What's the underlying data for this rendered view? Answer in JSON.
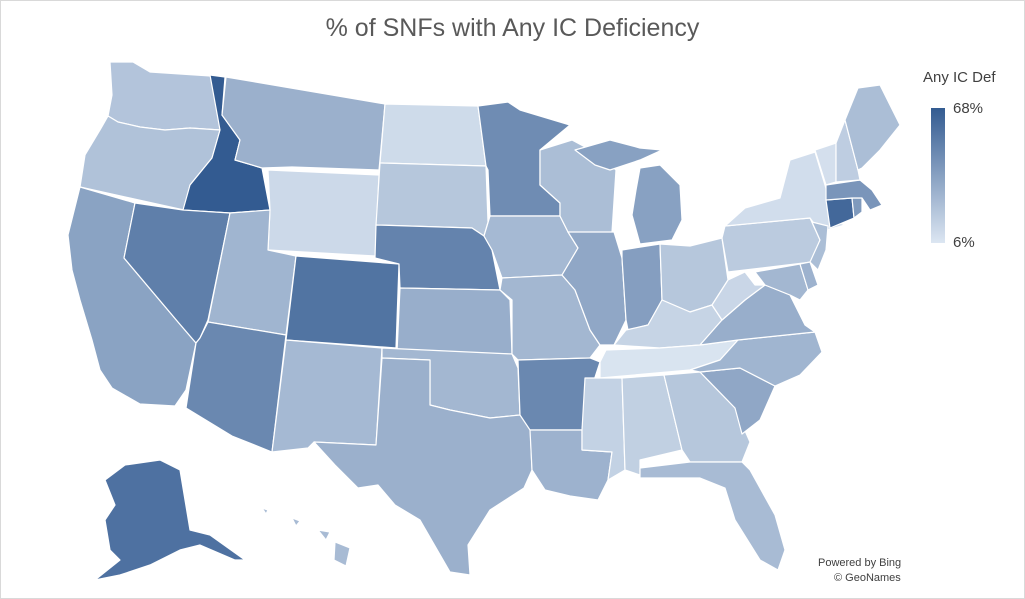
{
  "chart": {
    "title": "% of SNFs with Any IC Deficiency"
  },
  "legend": {
    "title": "Any IC Def",
    "max_label": "68%",
    "min_label": "6%",
    "min_color": "#dce6f2",
    "max_color": "#335b91"
  },
  "attribution": {
    "line1": "Powered by Bing",
    "line2": "© GeoNames"
  },
  "chart_data": {
    "type": "choropleth",
    "title": "% of SNFs with Any IC Deficiency",
    "legend_title": "Any IC Def",
    "range": [
      6,
      68
    ],
    "unit": "%",
    "states": [
      {
        "id": "ID",
        "value": 68
      },
      {
        "id": "CT",
        "value": 62
      },
      {
        "id": "AK",
        "value": 58
      },
      {
        "id": "CO",
        "value": 57
      },
      {
        "id": "NV",
        "value": 52
      },
      {
        "id": "NE",
        "value": 50
      },
      {
        "id": "AZ",
        "value": 48
      },
      {
        "id": "AR",
        "value": 48
      },
      {
        "id": "MN",
        "value": 46
      },
      {
        "id": "MA",
        "value": 42
      },
      {
        "id": "RI",
        "value": 40
      },
      {
        "id": "IN",
        "value": 38
      },
      {
        "id": "MI",
        "value": 37
      },
      {
        "id": "CA",
        "value": 36
      },
      {
        "id": "IL",
        "value": 34
      },
      {
        "id": "SC",
        "value": 34
      },
      {
        "id": "VA",
        "value": 31
      },
      {
        "id": "KS",
        "value": 31
      },
      {
        "id": "TX",
        "value": 30
      },
      {
        "id": "MT",
        "value": 30
      },
      {
        "id": "LA",
        "value": 29
      },
      {
        "id": "DE",
        "value": 29
      },
      {
        "id": "UT",
        "value": 28
      },
      {
        "id": "NC",
        "value": 28
      },
      {
        "id": "MO",
        "value": 27
      },
      {
        "id": "MD",
        "value": 27
      },
      {
        "id": "OK",
        "value": 27
      },
      {
        "id": "IA",
        "value": 26
      },
      {
        "id": "NM",
        "value": 26
      },
      {
        "id": "FL",
        "value": 25
      },
      {
        "id": "HI",
        "value": 25
      },
      {
        "id": "WI",
        "value": 24
      },
      {
        "id": "NJ",
        "value": 24
      },
      {
        "id": "ME",
        "value": 24
      },
      {
        "id": "OR",
        "value": 22
      },
      {
        "id": "WA",
        "value": 21
      },
      {
        "id": "GA",
        "value": 20
      },
      {
        "id": "OH",
        "value": 20
      },
      {
        "id": "SD",
        "value": 20
      },
      {
        "id": "PA",
        "value": 18
      },
      {
        "id": "NH",
        "value": 17
      },
      {
        "id": "AL",
        "value": 16
      },
      {
        "id": "MS",
        "value": 15
      },
      {
        "id": "KY",
        "value": 14
      },
      {
        "id": "WV",
        "value": 13
      },
      {
        "id": "WY",
        "value": 12
      },
      {
        "id": "ND",
        "value": 11
      },
      {
        "id": "NY",
        "value": 10
      },
      {
        "id": "VT",
        "value": 9
      },
      {
        "id": "TN",
        "value": 7
      }
    ]
  }
}
